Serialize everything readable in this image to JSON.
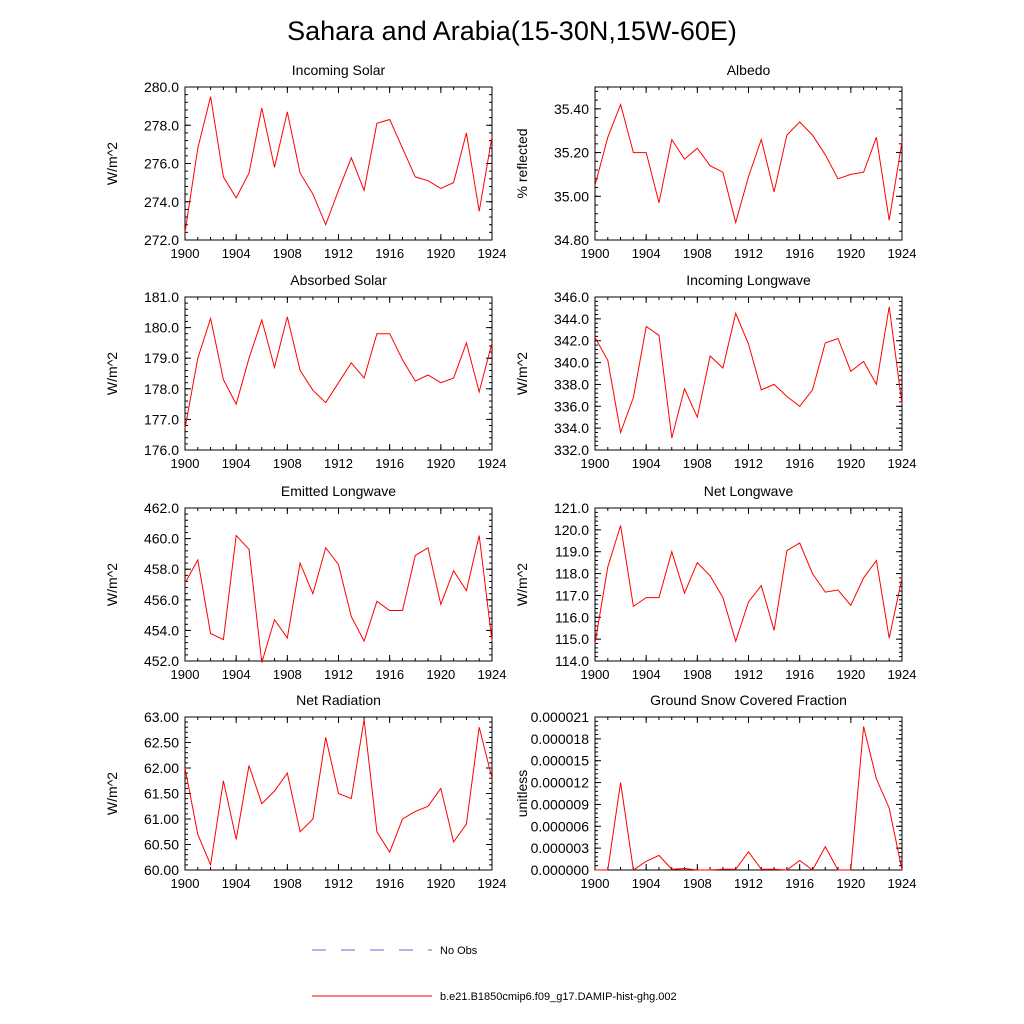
{
  "title": "Sahara and Arabia(15-30N,15W-60E)",
  "legend": [
    {
      "label": "No Obs",
      "color": "#6a6ad0",
      "style": "dashed"
    },
    {
      "label": "b.e21.B1850cmip6.f09_g17.DAMIP-hist-ghg.002",
      "color": "#ff0000",
      "style": "solid"
    }
  ],
  "chart_data": [
    {
      "type": "line",
      "title": "Incoming Solar",
      "ylabel": "W/m^2",
      "xlim": [
        1900,
        1924
      ],
      "ylim": [
        272,
        280
      ],
      "yticks": [
        "272.0",
        "274.0",
        "276.0",
        "278.0",
        "280.0"
      ],
      "xticks": [
        "1900",
        "1904",
        "1908",
        "1912",
        "1916",
        "1920",
        "1924"
      ],
      "x": [
        1900,
        1901,
        1902,
        1903,
        1904,
        1905,
        1906,
        1907,
        1908,
        1909,
        1910,
        1911,
        1912,
        1913,
        1914,
        1915,
        1916,
        1917,
        1918,
        1919,
        1920,
        1921,
        1922,
        1923,
        1924
      ],
      "series": [
        {
          "name": "b.e21.B1850cmip6.f09_g17.DAMIP-hist-ghg.002",
          "color": "#ff0000",
          "values": [
            272.4,
            276.8,
            279.5,
            275.3,
            274.2,
            275.5,
            278.9,
            275.8,
            278.7,
            275.5,
            274.4,
            272.8,
            274.6,
            276.3,
            274.6,
            278.1,
            278.3,
            276.8,
            275.3,
            275.1,
            274.7,
            275.0,
            277.6,
            273.5,
            277.4
          ]
        }
      ]
    },
    {
      "type": "line",
      "title": "Albedo",
      "ylabel": "% reflected",
      "xlim": [
        1900,
        1924
      ],
      "ylim": [
        34.8,
        35.5
      ],
      "yticks": [
        "34.80",
        "35.00",
        "35.20",
        "35.40"
      ],
      "xticks": [
        "1900",
        "1904",
        "1908",
        "1912",
        "1916",
        "1920",
        "1924"
      ],
      "x": [
        1900,
        1901,
        1902,
        1903,
        1904,
        1905,
        1906,
        1907,
        1908,
        1909,
        1910,
        1911,
        1912,
        1913,
        1914,
        1915,
        1916,
        1917,
        1918,
        1919,
        1920,
        1921,
        1922,
        1923,
        1924
      ],
      "series": [
        {
          "name": "b.e21.B1850cmip6.f09_g17.DAMIP-hist-ghg.002",
          "color": "#ff0000",
          "values": [
            35.05,
            35.27,
            35.42,
            35.2,
            35.2,
            34.97,
            35.26,
            35.17,
            35.22,
            35.14,
            35.11,
            34.88,
            35.09,
            35.26,
            35.02,
            35.28,
            35.34,
            35.28,
            35.19,
            35.08,
            35.1,
            35.11,
            35.27,
            34.89,
            35.25
          ]
        }
      ]
    },
    {
      "type": "line",
      "title": "Absorbed Solar",
      "ylabel": "W/m^2",
      "xlim": [
        1900,
        1924
      ],
      "ylim": [
        176,
        181
      ],
      "yticks": [
        "176.0",
        "177.0",
        "178.0",
        "179.0",
        "180.0",
        "181.0"
      ],
      "xticks": [
        "1900",
        "1904",
        "1908",
        "1912",
        "1916",
        "1920",
        "1924"
      ],
      "x": [
        1900,
        1901,
        1902,
        1903,
        1904,
        1905,
        1906,
        1907,
        1908,
        1909,
        1910,
        1911,
        1912,
        1913,
        1914,
        1915,
        1916,
        1917,
        1918,
        1919,
        1920,
        1921,
        1922,
        1923,
        1924
      ],
      "series": [
        {
          "name": "b.e21.B1850cmip6.f09_g17.DAMIP-hist-ghg.002",
          "color": "#ff0000",
          "values": [
            176.7,
            179.0,
            180.3,
            178.3,
            177.5,
            179.0,
            180.25,
            178.7,
            180.35,
            178.6,
            177.95,
            177.55,
            178.2,
            178.85,
            178.35,
            179.8,
            179.8,
            178.95,
            178.25,
            178.45,
            178.2,
            178.35,
            179.5,
            177.9,
            179.5
          ]
        }
      ]
    },
    {
      "type": "line",
      "title": "Incoming Longwave",
      "ylabel": "W/m^2",
      "xlim": [
        1900,
        1924
      ],
      "ylim": [
        332,
        346
      ],
      "yticks": [
        "332.0",
        "334.0",
        "336.0",
        "338.0",
        "340.0",
        "342.0",
        "344.0",
        "346.0"
      ],
      "xticks": [
        "1900",
        "1904",
        "1908",
        "1912",
        "1916",
        "1920",
        "1924"
      ],
      "x": [
        1900,
        1901,
        1902,
        1903,
        1904,
        1905,
        1906,
        1907,
        1908,
        1909,
        1910,
        1911,
        1912,
        1913,
        1914,
        1915,
        1916,
        1917,
        1918,
        1919,
        1920,
        1921,
        1922,
        1923,
        1924
      ],
      "series": [
        {
          "name": "b.e21.B1850cmip6.f09_g17.DAMIP-hist-ghg.002",
          "color": "#ff0000",
          "values": [
            342.3,
            340.2,
            333.6,
            336.8,
            343.3,
            342.5,
            333.1,
            337.6,
            335.0,
            340.6,
            339.5,
            344.5,
            341.7,
            337.5,
            338.0,
            336.9,
            336.0,
            337.5,
            341.8,
            342.2,
            339.2,
            340.1,
            338.0,
            345.1,
            336.2
          ]
        }
      ]
    },
    {
      "type": "line",
      "title": "Emitted Longwave",
      "ylabel": "W/m^2",
      "xlim": [
        1900,
        1924
      ],
      "ylim": [
        452,
        462
      ],
      "yticks": [
        "452.0",
        "454.0",
        "456.0",
        "458.0",
        "460.0",
        "462.0"
      ],
      "xticks": [
        "1900",
        "1904",
        "1908",
        "1912",
        "1916",
        "1920",
        "1924"
      ],
      "x": [
        1900,
        1901,
        1902,
        1903,
        1904,
        1905,
        1906,
        1907,
        1908,
        1909,
        1910,
        1911,
        1912,
        1913,
        1914,
        1915,
        1916,
        1917,
        1918,
        1919,
        1920,
        1921,
        1922,
        1923,
        1924
      ],
      "series": [
        {
          "name": "b.e21.B1850cmip6.f09_g17.DAMIP-hist-ghg.002",
          "color": "#ff0000",
          "values": [
            457.1,
            458.6,
            453.8,
            453.4,
            460.2,
            459.3,
            451.9,
            454.7,
            453.5,
            458.4,
            456.4,
            459.4,
            458.3,
            454.9,
            453.3,
            455.9,
            455.3,
            455.3,
            458.9,
            459.4,
            455.7,
            457.9,
            456.6,
            460.2,
            453.3
          ]
        }
      ]
    },
    {
      "type": "line",
      "title": "Net Longwave",
      "ylabel": "W/m^2",
      "xlim": [
        1900,
        1924
      ],
      "ylim": [
        114,
        121
      ],
      "yticks": [
        "114.0",
        "115.0",
        "116.0",
        "117.0",
        "118.0",
        "119.0",
        "120.0",
        "121.0"
      ],
      "xticks": [
        "1900",
        "1904",
        "1908",
        "1912",
        "1916",
        "1920",
        "1924"
      ],
      "x": [
        1900,
        1901,
        1902,
        1903,
        1904,
        1905,
        1906,
        1907,
        1908,
        1909,
        1910,
        1911,
        1912,
        1913,
        1914,
        1915,
        1916,
        1917,
        1918,
        1919,
        1920,
        1921,
        1922,
        1923,
        1924
      ],
      "series": [
        {
          "name": "b.e21.B1850cmip6.f09_g17.DAMIP-hist-ghg.002",
          "color": "#ff0000",
          "values": [
            114.8,
            118.3,
            120.2,
            116.5,
            116.9,
            116.9,
            119.0,
            117.1,
            118.5,
            117.9,
            116.9,
            114.9,
            116.7,
            117.45,
            115.4,
            119.05,
            119.4,
            118.0,
            117.15,
            117.25,
            116.55,
            117.8,
            118.6,
            115.05,
            117.8
          ]
        }
      ]
    },
    {
      "type": "line",
      "title": "Net Radiation",
      "ylabel": "W/m^2",
      "xlim": [
        1900,
        1924
      ],
      "ylim": [
        60,
        63
      ],
      "yticks": [
        "60.00",
        "60.50",
        "61.00",
        "61.50",
        "62.00",
        "62.50",
        "63.00"
      ],
      "xticks": [
        "1900",
        "1904",
        "1908",
        "1912",
        "1916",
        "1920",
        "1924"
      ],
      "x": [
        1900,
        1901,
        1902,
        1903,
        1904,
        1905,
        1906,
        1907,
        1908,
        1909,
        1910,
        1911,
        1912,
        1913,
        1914,
        1915,
        1916,
        1917,
        1918,
        1919,
        1920,
        1921,
        1922,
        1923,
        1924
      ],
      "series": [
        {
          "name": "b.e21.B1850cmip6.f09_g17.DAMIP-hist-ghg.002",
          "color": "#ff0000",
          "values": [
            62.0,
            60.7,
            60.1,
            61.75,
            60.6,
            62.05,
            61.3,
            61.55,
            61.9,
            60.75,
            61.0,
            62.6,
            61.5,
            61.4,
            62.95,
            60.75,
            60.35,
            61.0,
            61.15,
            61.25,
            61.6,
            60.55,
            60.9,
            62.8,
            61.8
          ]
        }
      ]
    },
    {
      "type": "line",
      "title": "Ground Snow Covered Fraction",
      "ylabel": "unitless",
      "xlim": [
        1900,
        1924
      ],
      "ylim": [
        0,
        2.1e-05
      ],
      "yticks": [
        "0.000000",
        "0.000003",
        "0.000006",
        "0.000009",
        "0.000012",
        "0.000015",
        "0.000018",
        "0.000021"
      ],
      "xticks": [
        "1900",
        "1904",
        "1908",
        "1912",
        "1916",
        "1920",
        "1924"
      ],
      "x": [
        1900,
        1901,
        1902,
        1903,
        1904,
        1905,
        1906,
        1907,
        1908,
        1909,
        1910,
        1911,
        1912,
        1913,
        1914,
        1915,
        1916,
        1917,
        1918,
        1919,
        1920,
        1921,
        1922,
        1923,
        1924
      ],
      "series": [
        {
          "name": "b.e21.B1850cmip6.f09_g17.DAMIP-hist-ghg.002",
          "color": "#ff0000",
          "values": [
            0,
            0,
            1.2e-05,
            0,
            1.2e-06,
            2e-06,
            1e-07,
            2e-07,
            0,
            0,
            1e-07,
            1e-07,
            2.5e-06,
            1e-07,
            1e-07,
            0,
            1.3e-06,
            0,
            3.2e-06,
            0,
            0,
            1.97e-05,
            1.25e-05,
            8.5e-06,
            0
          ]
        }
      ]
    }
  ]
}
